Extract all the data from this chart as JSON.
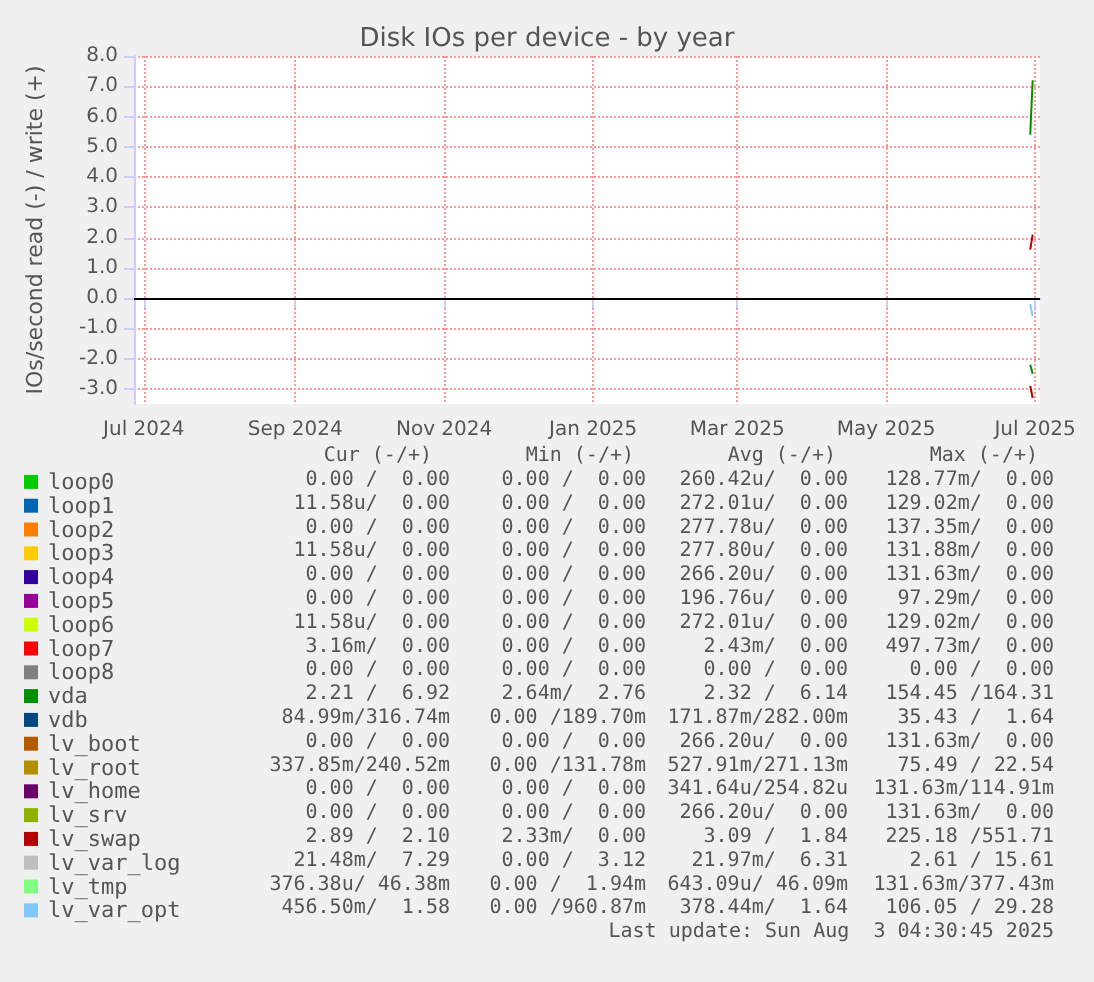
{
  "chart_data": {
    "type": "line",
    "title": "Disk IOs per device - by year",
    "ylabel": "IOs/second read (-) / write (+)",
    "x": [
      "2025-06-29",
      "2025-06-30"
    ],
    "xlim": [
      "2024-06-27",
      "2025-07-03"
    ],
    "xticks": [
      {
        "value": "2024-07-01",
        "label": "Jul 2024"
      },
      {
        "value": "2024-09-01",
        "label": "Sep 2024"
      },
      {
        "value": "2024-11-01",
        "label": "Nov 2024"
      },
      {
        "value": "2025-01-01",
        "label": "Jan 2025"
      },
      {
        "value": "2025-03-01",
        "label": "Mar 2025"
      },
      {
        "value": "2025-05-01",
        "label": "May 2025"
      },
      {
        "value": "2025-07-01",
        "label": "Jul 2025"
      }
    ],
    "ylim": [
      -3.5,
      8.0
    ],
    "yticks": [
      {
        "value": -3,
        "label": "-3.0"
      },
      {
        "value": -2,
        "label": "-2.0"
      },
      {
        "value": -1,
        "label": "-1.0"
      },
      {
        "value": 0,
        "label": "0.0"
      },
      {
        "value": 1,
        "label": "1.0"
      },
      {
        "value": 2,
        "label": "2.0"
      },
      {
        "value": 3,
        "label": "3.0"
      },
      {
        "value": 4,
        "label": "4.0"
      },
      {
        "value": 5,
        "label": "5.0"
      },
      {
        "value": 6,
        "label": "6.0"
      },
      {
        "value": 7,
        "label": "7.0"
      },
      {
        "value": 8,
        "label": "8.0"
      }
    ],
    "grid": true,
    "legend": "bottom",
    "marker": "none",
    "line_style": "solid",
    "ref_lines": [
      {
        "axis": "y",
        "value": 0,
        "color": "#000000"
      }
    ],
    "series": [
      {
        "name": "loop0",
        "color": "#00cc00",
        "values": [
          null,
          null
        ]
      },
      {
        "name": "loop1",
        "color": "#0066b3",
        "values": [
          null,
          null
        ]
      },
      {
        "name": "loop2",
        "color": "#ff8000",
        "values": [
          null,
          null
        ]
      },
      {
        "name": "loop3",
        "color": "#ffcc00",
        "values": [
          null,
          null
        ]
      },
      {
        "name": "loop4",
        "color": "#330099",
        "values": [
          null,
          null
        ]
      },
      {
        "name": "loop5",
        "color": "#990099",
        "values": [
          null,
          null
        ]
      },
      {
        "name": "loop6",
        "color": "#ccff00",
        "values": [
          null,
          null
        ]
      },
      {
        "name": "loop7",
        "color": "#ff0000",
        "values": [
          null,
          null
        ]
      },
      {
        "name": "loop8",
        "color": "#808080",
        "values": [
          null,
          null
        ]
      },
      {
        "name": "vda",
        "color": "#008f00",
        "values": [
          5.4,
          7.2
        ]
      },
      {
        "name": "vdb",
        "color": "#00487d",
        "values": [
          null,
          null
        ]
      },
      {
        "name": "lv_boot",
        "color": "#b35a00",
        "values": [
          null,
          null
        ]
      },
      {
        "name": "lv_root",
        "color": "#b38f00",
        "values": [
          null,
          null
        ]
      },
      {
        "name": "lv_home",
        "color": "#6b006b",
        "values": [
          null,
          null
        ]
      },
      {
        "name": "lv_srv",
        "color": "#8fb300",
        "values": [
          null,
          null
        ]
      },
      {
        "name": "lv_swap",
        "color": "#b30000",
        "values": [
          1.6,
          2.1
        ]
      },
      {
        "name": "lv_var_log",
        "color": "#bebebe",
        "values": [
          null,
          null
        ]
      },
      {
        "name": "lv_tmp",
        "color": "#80ff80",
        "values": [
          null,
          null
        ]
      },
      {
        "name": "lv_var_opt",
        "color": "#80c9ff",
        "values": [
          null,
          null
        ]
      },
      {
        "color": "#008f00",
        "values": [
          -2.2,
          -2.5
        ]
      },
      {
        "color": "#b30000",
        "values": [
          -2.9,
          -3.3
        ]
      },
      {
        "color": "#80c9ff",
        "values": [
          -0.2,
          -0.6
        ]
      }
    ],
    "annotations": [
      "Cur (-/+)",
      "Min (-/+)",
      "Avg (-/+)",
      "Max (-/+)",
      "0.00 /  0.00",
      "0.00 /  0.00",
      "260.42u/  0.00",
      "128.77m/  0.00",
      "11.58u/  0.00",
      "0.00 /  0.00",
      "272.01u/  0.00",
      "129.02m/  0.00",
      "0.00 /  0.00",
      "0.00 /  0.00",
      "277.78u/  0.00",
      "137.35m/  0.00",
      "11.58u/  0.00",
      "0.00 /  0.00",
      "277.80u/  0.00",
      "131.88m/  0.00",
      "0.00 /  0.00",
      "0.00 /  0.00",
      "266.20u/  0.00",
      "131.63m/  0.00",
      "0.00 /  0.00",
      "0.00 /  0.00",
      "196.76u/  0.00",
      "97.29m/  0.00",
      "11.58u/  0.00",
      "0.00 /  0.00",
      "272.01u/  0.00",
      "129.02m/  0.00",
      "3.16m/  0.00",
      "0.00 /  0.00",
      "2.43m/  0.00",
      "497.73m/  0.00",
      "0.00 /  0.00",
      "0.00 /  0.00",
      "0.00 /  0.00",
      "0.00 /  0.00",
      "2.21 /  6.92",
      "2.64m/  2.76",
      "2.32 /  6.14",
      "154.45 /164.31",
      "84.99m/316.74m",
      "0.00 /189.70m",
      "171.87m/282.00m",
      "35.43 /  1.64",
      "0.00 /  0.00",
      "0.00 /  0.00",
      "266.20u/  0.00",
      "131.63m/  0.00",
      "337.85m/240.52m",
      "0.00 /131.78m",
      "527.91m/271.13m",
      "75.49 / 22.54",
      "0.00 /  0.00",
      "0.00 /  0.00",
      "341.64u/254.82u",
      "131.63m/114.91m",
      "0.00 /  0.00",
      "0.00 /  0.00",
      "266.20u/  0.00",
      "131.63m/  0.00",
      "2.89 /  2.10",
      "2.33m/  0.00",
      "3.09 /  1.84",
      "225.18 /551.71",
      "21.48m/  7.29",
      "0.00 /  3.12",
      "21.97m/  6.31",
      "2.61 / 15.61",
      "376.38u/ 46.38m",
      "0.00 /  1.94m",
      "643.09u/ 46.09m",
      "131.63m/377.43m",
      "456.50m/  1.58",
      "0.00 /960.87m",
      "378.44m/  1.64",
      "106.05 / 29.28",
      "Last update: Sun Aug  3 04:30:45 2025"
    ]
  }
}
